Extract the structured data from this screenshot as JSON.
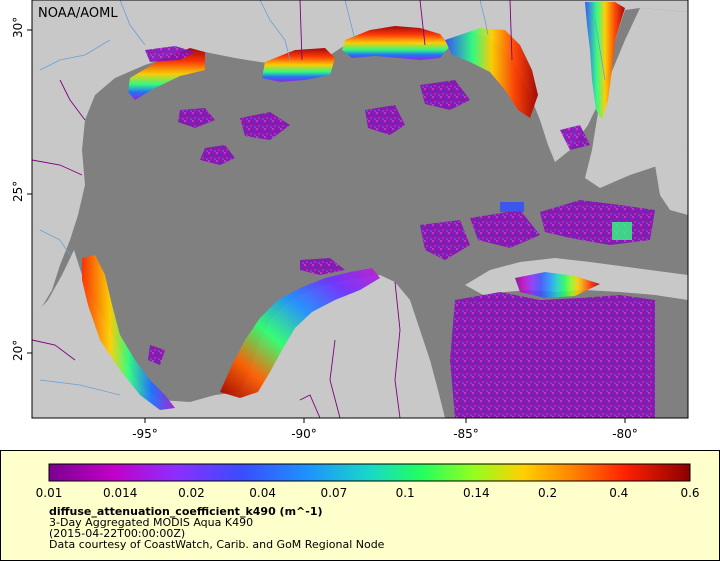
{
  "credit": "NOAA/AOML",
  "map": {
    "lon_ticks": [
      "-95°",
      "-90°",
      "-85°",
      "-80°"
    ],
    "lat_ticks": [
      "30°",
      "25°",
      "20°"
    ]
  },
  "legend": {
    "tick_labels": [
      "0.01",
      "0.014",
      "0.02",
      "0.04",
      "0.07",
      "0.1",
      "0.14",
      "0.2",
      "0.4",
      "0.6"
    ],
    "colors": [
      "#7a0090",
      "#c200c8",
      "#8a30ff",
      "#3a4cff",
      "#1e90ff",
      "#18d8c8",
      "#20ff60",
      "#90ff20",
      "#ffd000",
      "#ff8000",
      "#ff2000",
      "#8a0000"
    ],
    "variable": "diffuse_attenuation_coefficient_k490 (m^-1)",
    "dataset": "3-Day Aggregated MODIS Aqua K490",
    "time": "(2015-04-22T00:00:00Z)",
    "courtesy": "Data courtesy of CoastWatch, Carib. and GoM Regional Node"
  },
  "colors": {
    "land": "#c8c8c8",
    "ocean_nodata": "#808080",
    "rivers": "#6aa0d8",
    "borders": "#800080",
    "legend_bg": "#ffffcc"
  }
}
